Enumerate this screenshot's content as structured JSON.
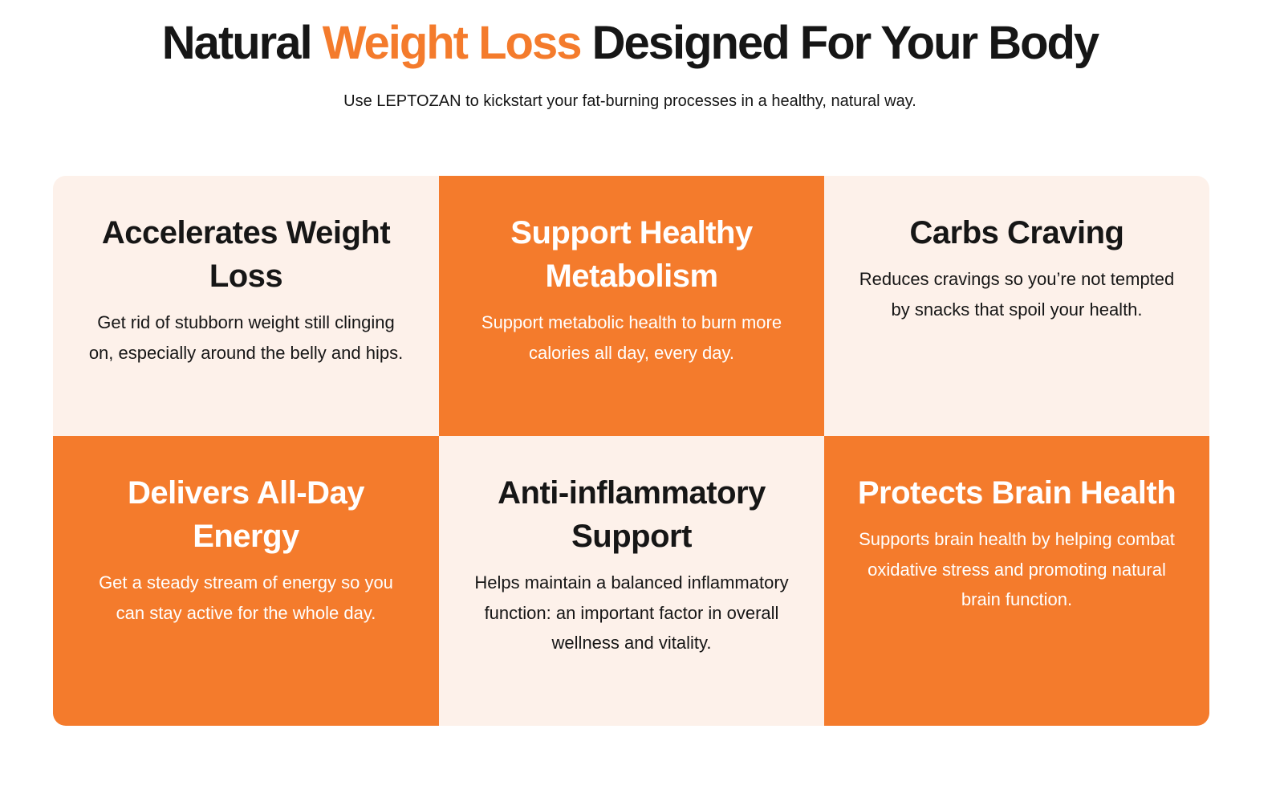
{
  "header": {
    "title_before": "Natural ",
    "title_accent": "Weight Loss",
    "title_after": " Designed For Your Body",
    "subtitle": "Use LEPTOZAN to kickstart your fat-burning processes in a healthy, natural way."
  },
  "colors": {
    "accent": "#f47b2c",
    "light": "#fdf1ea",
    "text": "#161616"
  },
  "features": [
    {
      "title": "Accelerates Weight Loss",
      "text": "Get rid of stubborn weight still clinging on, especially around the belly and hips."
    },
    {
      "title": "Support Healthy Metabolism",
      "text": "Support metabolic health to burn more calories all day, every day."
    },
    {
      "title": "Carbs Craving",
      "text": "Reduces cravings so you’re not tempted by snacks that spoil your health."
    },
    {
      "title": "Delivers All-Day Energy",
      "text": "Get a steady stream of energy so you can stay active for the whole day."
    },
    {
      "title": "Anti-inflammatory Support",
      "text": "Helps maintain a balanced inflammatory function: an important factor in overall wellness and vitality."
    },
    {
      "title": "Protects Brain Health",
      "text": "Supports brain health by helping combat oxidative stress and promoting natural brain function."
    }
  ]
}
